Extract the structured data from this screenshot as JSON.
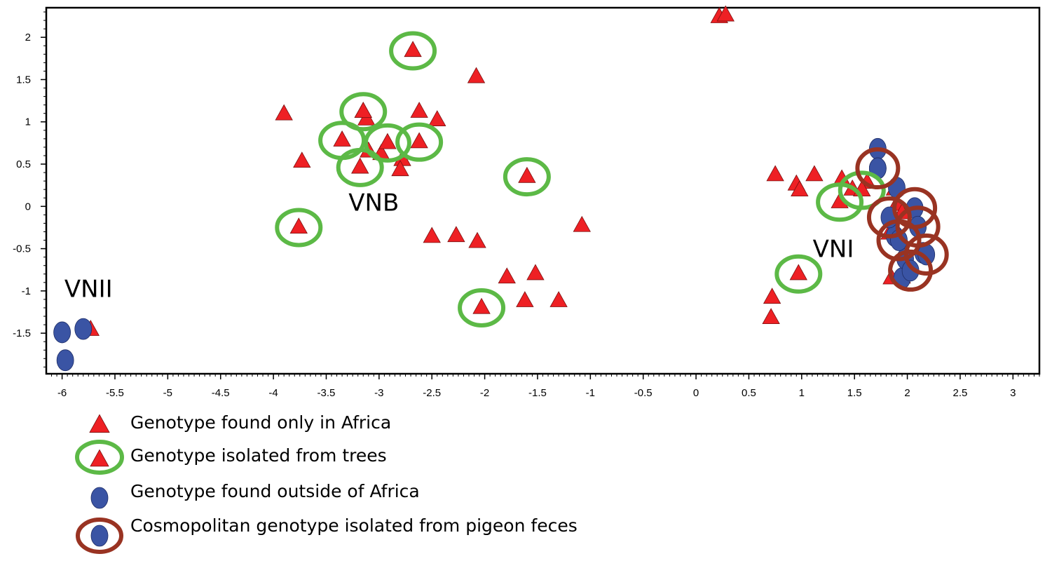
{
  "chart_data": {
    "type": "scatter",
    "title": "",
    "xlabel": "",
    "ylabel": "",
    "xlim": [
      -6.15,
      3.25
    ],
    "ylim": [
      -1.98,
      2.35
    ],
    "grid": false,
    "x_ticks": [
      -6,
      -5.5,
      -5,
      -4.5,
      -4,
      -3.5,
      -3,
      -2.5,
      -2,
      -1.5,
      -1,
      -0.5,
      0,
      0.5,
      1,
      1.5,
      2,
      2.5,
      3
    ],
    "x_tick_labels": [
      "-6",
      "-5.5",
      "-5",
      "-4.5",
      "-4",
      "-3.5",
      "-3",
      "-2.5",
      "-2",
      "-1.5",
      "-1",
      "-0.5",
      "0",
      "0.5",
      "1",
      "1.5",
      "2",
      "2.5",
      "3"
    ],
    "y_ticks": [
      2,
      1.5,
      1,
      0.5,
      0,
      -0.5,
      -1,
      -1.5
    ],
    "y_tick_labels": [
      "2",
      "1.5",
      "1",
      "0.5",
      "0",
      "-0.5",
      "-1",
      "-1.5"
    ],
    "colors": {
      "triangle": "#ee2024",
      "circle": "#3a54a4",
      "tree_ring": "#5cb946",
      "pigeon_ring": "#993322"
    },
    "cluster_labels": [
      {
        "text": "VNII",
        "x": -5.75,
        "y": -1.07
      },
      {
        "text": "VNB",
        "x": -3.05,
        "y": -0.05
      },
      {
        "text": "VNI",
        "x": 1.3,
        "y": -0.6
      }
    ],
    "series": [
      {
        "name": "Genotype found only in Africa",
        "marker": "triangle",
        "points": [
          [
            0.22,
            2.24
          ],
          [
            0.28,
            2.26
          ],
          [
            -2.08,
            1.53
          ],
          [
            -3.9,
            1.09
          ],
          [
            -3.15,
            1.12
          ],
          [
            -3.12,
            1.03
          ],
          [
            -2.62,
            1.12
          ],
          [
            -2.45,
            1.02
          ],
          [
            -3.1,
            0.65
          ],
          [
            -2.98,
            0.62
          ],
          [
            -2.78,
            0.55
          ],
          [
            -2.8,
            0.43
          ],
          [
            -3.73,
            0.53
          ],
          [
            -1.08,
            -0.23
          ],
          [
            -2.5,
            -0.36
          ],
          [
            -2.27,
            -0.35
          ],
          [
            -2.07,
            -0.42
          ],
          [
            -1.79,
            -0.84
          ],
          [
            -1.52,
            -0.8
          ],
          [
            -1.62,
            -1.12
          ],
          [
            -1.3,
            -1.12
          ],
          [
            -5.73,
            -1.46
          ],
          [
            0.75,
            0.37
          ],
          [
            0.95,
            0.26
          ],
          [
            0.98,
            0.19
          ],
          [
            1.12,
            0.37
          ],
          [
            1.38,
            0.32
          ],
          [
            1.48,
            0.2
          ],
          [
            1.62,
            0.28
          ],
          [
            1.88,
            0.2
          ],
          [
            1.9,
            0.02
          ],
          [
            1.95,
            -0.08
          ],
          [
            1.83,
            -0.32
          ],
          [
            1.85,
            -0.85
          ],
          [
            1.95,
            -0.84
          ],
          [
            0.72,
            -1.08
          ],
          [
            0.71,
            -1.32
          ]
        ]
      },
      {
        "name": "Genotype isolated from trees",
        "marker": "triangle-ring",
        "points": [
          [
            -2.68,
            1.84
          ],
          [
            -3.15,
            1.12
          ],
          [
            -3.35,
            0.78
          ],
          [
            -2.92,
            0.75
          ],
          [
            -2.62,
            0.76
          ],
          [
            -3.18,
            0.46
          ],
          [
            -1.6,
            0.35
          ],
          [
            -3.76,
            -0.25
          ],
          [
            -2.03,
            -1.2
          ],
          [
            0.97,
            -0.8
          ],
          [
            1.36,
            0.05
          ],
          [
            1.57,
            0.19
          ]
        ]
      },
      {
        "name": "Genotype found outside of Africa",
        "marker": "circle",
        "points": [
          [
            1.72,
            0.68
          ],
          [
            1.72,
            0.45
          ],
          [
            1.9,
            0.22
          ],
          [
            -6.0,
            -1.49
          ],
          [
            -5.8,
            -1.45
          ],
          [
            -5.97,
            -1.82
          ],
          [
            1.95,
            -0.85
          ],
          [
            1.88,
            -0.35
          ],
          [
            2.15,
            -0.55
          ],
          [
            1.98,
            -0.62
          ]
        ]
      },
      {
        "name": "Cosmopolitan genotype isolated from pigeon feces",
        "marker": "circle-ring",
        "points": [
          [
            1.72,
            0.45
          ],
          [
            2.07,
            -0.02
          ],
          [
            1.83,
            -0.13
          ],
          [
            2.1,
            -0.24
          ],
          [
            2.18,
            -0.57
          ],
          [
            1.92,
            -0.4
          ],
          [
            2.03,
            -0.76
          ]
        ]
      }
    ]
  },
  "legend": [
    {
      "marker": "triangle",
      "label": "Genotype found only in Africa"
    },
    {
      "marker": "triangle-ring",
      "label": "Genotype isolated from trees"
    },
    {
      "marker": "circle",
      "label": "Genotype found outside of Africa"
    },
    {
      "marker": "circle-ring",
      "label": "Cosmopolitan genotype isolated from pigeon feces"
    }
  ]
}
